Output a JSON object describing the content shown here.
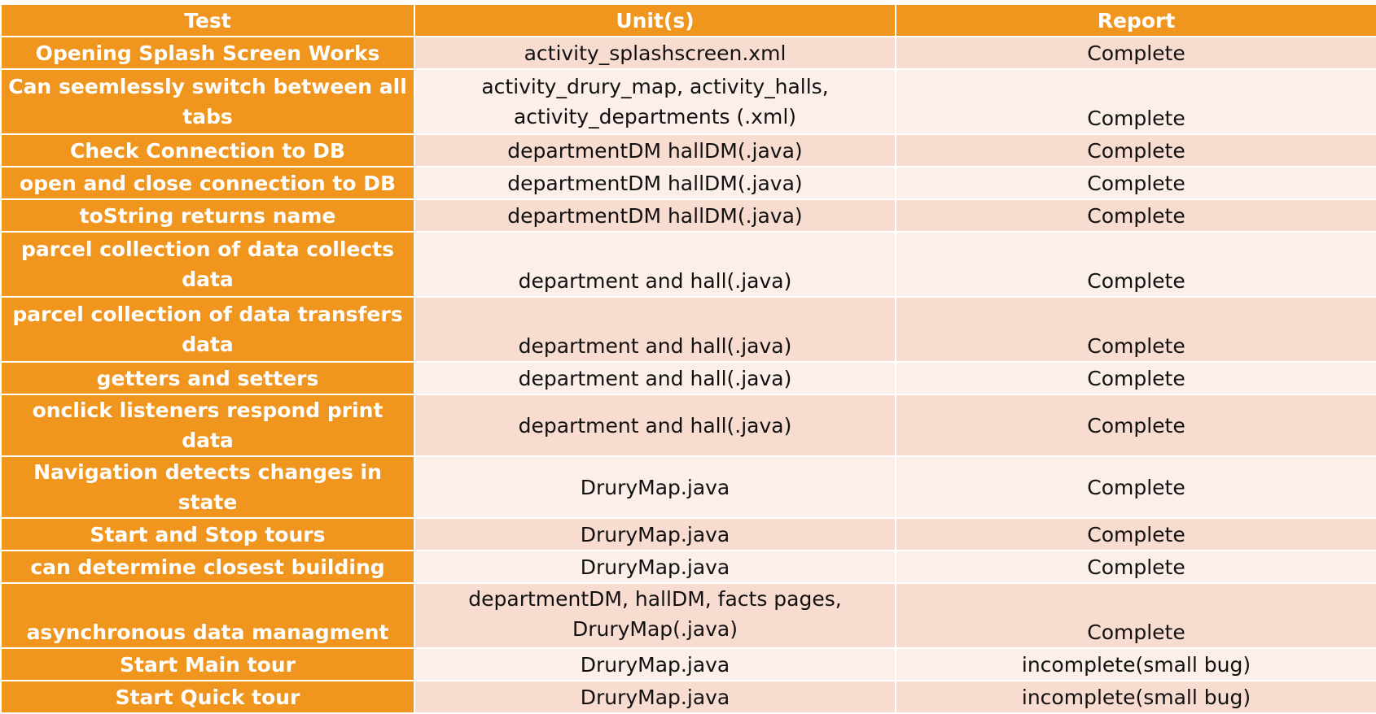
{
  "header": {
    "test": "Test",
    "units": "Unit(s)",
    "report": "Report"
  },
  "rows": [
    {
      "test": "Opening Splash Screen Works",
      "units": "activity_splashscreen.xml",
      "report": "Complete"
    },
    {
      "test": "Can seemlessly switch between all tabs",
      "units": "activity_drury_map, activity_halls, activity_departments (.xml)",
      "report": "Complete"
    },
    {
      "test": "Check Connection to DB",
      "units": "departmentDM hallDM(.java)",
      "report": "Complete"
    },
    {
      "test": "open and close connection to DB",
      "units": "departmentDM hallDM(.java)",
      "report": "Complete"
    },
    {
      "test": "toString returns name",
      "units": "departmentDM hallDM(.java)",
      "report": "Complete"
    },
    {
      "test": "parcel collection of data collects data",
      "units": "department and hall(.java)",
      "report": "Complete"
    },
    {
      "test": "parcel collection of data transfers data",
      "units": "department and hall(.java)",
      "report": "Complete"
    },
    {
      "test": "getters and setters",
      "units": "department and hall(.java)",
      "report": "Complete"
    },
    {
      "test": "onclick listeners respond print data",
      "units": "department and hall(.java)",
      "report": "Complete"
    },
    {
      "test": "Navigation detects changes in state",
      "units": "DruryMap.java",
      "report": "Complete"
    },
    {
      "test": "Start and Stop tours",
      "units": "DruryMap.java",
      "report": "Complete"
    },
    {
      "test": "can determine closest building",
      "units": "DruryMap.java",
      "report": "Complete"
    },
    {
      "test": "asynchronous data managment",
      "units": "departmentDM, hallDM, facts pages, DruryMap(.java)",
      "report": "Complete"
    },
    {
      "test": "Start Main tour",
      "units": "DruryMap.java",
      "report": "incomplete(small bug)"
    },
    {
      "test": "Start Quick tour",
      "units": "DruryMap.java",
      "report": "incomplete(small bug)"
    }
  ],
  "colors": {
    "header_bg": "#f0951e",
    "test_col_bg": "#f0951e",
    "row_odd_bg": "#f8dccf",
    "row_even_bg": "#fceee8"
  }
}
